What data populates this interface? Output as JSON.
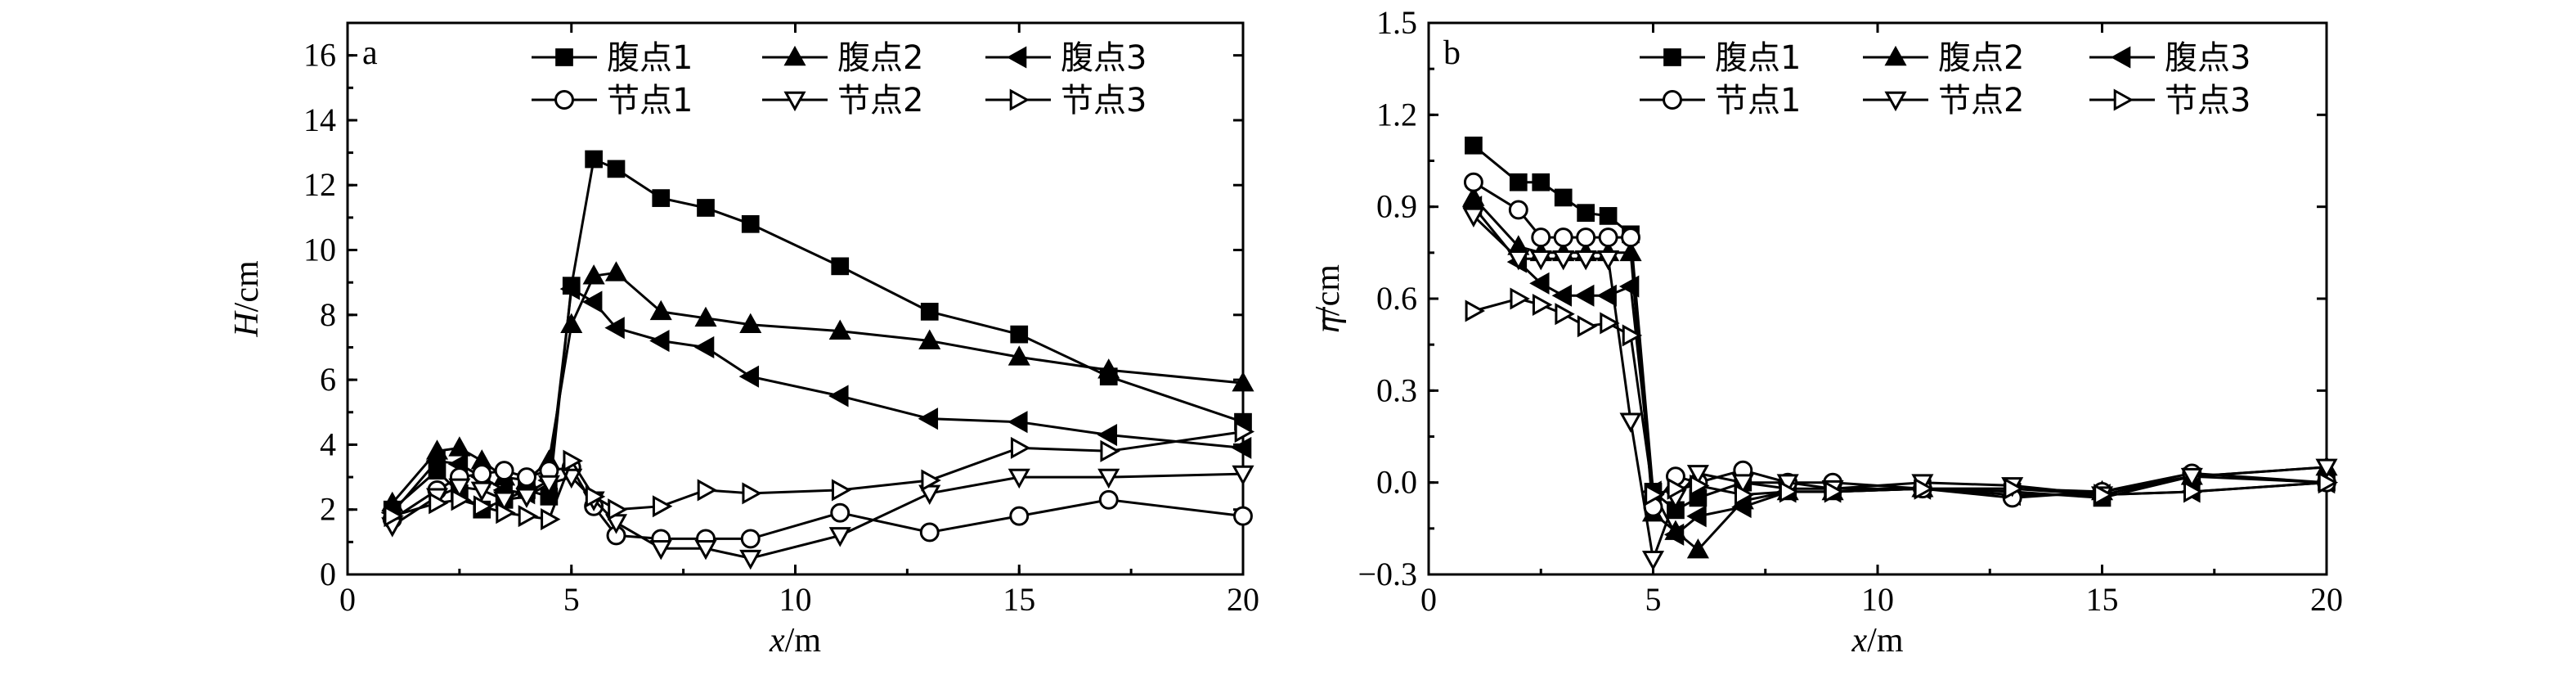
{
  "chart_data": [
    {
      "type": "line",
      "panel_label": "a",
      "xlabel": "x/m",
      "ylabel": "H/cm",
      "xlim": [
        0,
        20
      ],
      "ylim": [
        0,
        17
      ],
      "xticks": [
        0,
        5,
        10,
        15,
        20
      ],
      "yticks": [
        0,
        2,
        4,
        6,
        8,
        10,
        12,
        14,
        16
      ],
      "tick_decimals": 0,
      "grid": false,
      "legend_position": "top-right",
      "series": [
        {
          "name": "腹点1",
          "marker": "square-filled",
          "x": [
            1,
            2,
            2.5,
            3,
            3.5,
            4,
            4.5,
            5,
            5.5,
            6,
            7,
            8,
            9,
            11,
            13,
            15,
            17,
            20
          ],
          "y": [
            2.0,
            3.2,
            2.5,
            2.0,
            2.3,
            2.6,
            2.4,
            8.9,
            12.8,
            12.5,
            11.6,
            11.3,
            10.8,
            9.5,
            8.1,
            7.4,
            6.1,
            4.7
          ]
        },
        {
          "name": "腹点2",
          "marker": "triangle-up-filled",
          "x": [
            1,
            2,
            2.5,
            3,
            3.5,
            4,
            4.5,
            5,
            5.5,
            6,
            7,
            8,
            9,
            11,
            13,
            15,
            17,
            20
          ],
          "y": [
            2.2,
            3.8,
            3.9,
            3.5,
            3.0,
            2.9,
            3.5,
            7.7,
            9.2,
            9.3,
            8.1,
            7.9,
            7.7,
            7.5,
            7.2,
            6.7,
            6.3,
            5.9
          ]
        },
        {
          "name": "腹点3",
          "marker": "triangle-left-filled",
          "x": [
            1,
            2,
            2.5,
            3,
            3.5,
            4,
            4.5,
            5,
            5.5,
            6,
            7,
            8,
            9,
            11,
            13,
            15,
            17,
            20
          ],
          "y": [
            1.9,
            3.5,
            3.4,
            3.0,
            2.6,
            2.5,
            2.9,
            8.8,
            8.4,
            7.6,
            7.2,
            7.0,
            6.1,
            5.5,
            4.8,
            4.7,
            4.3,
            3.9
          ]
        },
        {
          "name": "节点1",
          "marker": "circle-open",
          "x": [
            1,
            2,
            2.5,
            3,
            3.5,
            4,
            4.5,
            5,
            5.5,
            6,
            7,
            8,
            9,
            11,
            13,
            15,
            17,
            20
          ],
          "y": [
            1.7,
            2.6,
            3.0,
            3.1,
            3.2,
            3.0,
            3.2,
            3.3,
            2.1,
            1.2,
            1.1,
            1.1,
            1.1,
            1.9,
            1.3,
            1.8,
            2.3,
            1.8
          ]
        },
        {
          "name": "节点2",
          "marker": "triangle-down-open",
          "x": [
            1,
            2,
            2.5,
            3,
            3.5,
            4,
            4.5,
            5,
            5.5,
            6,
            7,
            8,
            9,
            11,
            13,
            15,
            17,
            20
          ],
          "y": [
            1.5,
            2.4,
            2.7,
            2.6,
            2.3,
            2.4,
            2.8,
            3.0,
            2.3,
            1.6,
            0.8,
            0.8,
            0.5,
            1.2,
            2.5,
            3.0,
            3.0,
            3.1
          ]
        },
        {
          "name": "节点3",
          "marker": "triangle-right-open",
          "x": [
            1,
            2,
            2.5,
            3,
            3.5,
            4,
            4.5,
            5,
            5.5,
            6,
            7,
            8,
            9,
            11,
            13,
            15,
            17,
            20
          ],
          "y": [
            1.8,
            2.2,
            2.3,
            2.1,
            1.9,
            1.8,
            1.7,
            3.5,
            2.4,
            2.0,
            2.1,
            2.6,
            2.5,
            2.6,
            2.9,
            3.9,
            3.8,
            4.4
          ]
        }
      ]
    },
    {
      "type": "line",
      "panel_label": "b",
      "xlabel": "x/m",
      "ylabel": "η/cm",
      "xlim": [
        0,
        20
      ],
      "ylim": [
        -0.3,
        1.5
      ],
      "xticks": [
        0,
        5,
        10,
        15,
        20
      ],
      "yticks": [
        -0.3,
        0.0,
        0.3,
        0.6,
        0.9,
        1.2,
        1.5
      ],
      "tick_decimals": 1,
      "grid": false,
      "legend_position": "top-right",
      "series": [
        {
          "name": "腹点1",
          "marker": "square-filled",
          "x": [
            1,
            2,
            2.5,
            3,
            3.5,
            4,
            4.5,
            5,
            5.5,
            6,
            7,
            8,
            9,
            11,
            13,
            15,
            17,
            20
          ],
          "y": [
            1.1,
            0.98,
            0.98,
            0.93,
            0.88,
            0.87,
            0.81,
            -0.03,
            -0.09,
            -0.05,
            0.0,
            -0.02,
            -0.02,
            -0.02,
            -0.03,
            -0.05,
            0.02,
            0.0
          ]
        },
        {
          "name": "腹点2",
          "marker": "triangle-up-filled",
          "x": [
            1,
            2,
            2.5,
            3,
            3.5,
            4,
            4.5,
            5,
            5.5,
            6,
            7,
            8,
            9,
            11,
            13,
            15,
            17,
            20
          ],
          "y": [
            0.93,
            0.77,
            0.75,
            0.75,
            0.75,
            0.75,
            0.75,
            -0.1,
            -0.16,
            -0.22,
            -0.06,
            -0.03,
            -0.03,
            -0.02,
            -0.02,
            -0.03,
            0.02,
            0.05
          ]
        },
        {
          "name": "腹点3",
          "marker": "triangle-left-filled",
          "x": [
            1,
            2,
            2.5,
            3,
            3.5,
            4,
            4.5,
            5,
            5.5,
            6,
            7,
            8,
            9,
            11,
            13,
            15,
            17,
            20
          ],
          "y": [
            0.9,
            0.72,
            0.65,
            0.61,
            0.61,
            0.61,
            0.64,
            -0.03,
            -0.17,
            -0.11,
            -0.08,
            -0.03,
            -0.03,
            -0.02,
            -0.04,
            -0.04,
            -0.03,
            0.0
          ]
        },
        {
          "name": "节点1",
          "marker": "circle-open",
          "x": [
            1,
            2,
            2.5,
            3,
            3.5,
            4,
            4.5,
            5,
            5.5,
            6,
            7,
            8,
            9,
            11,
            13,
            15,
            17,
            20
          ],
          "y": [
            0.98,
            0.89,
            0.8,
            0.8,
            0.8,
            0.8,
            0.8,
            -0.08,
            0.02,
            0.0,
            0.04,
            0.0,
            0.0,
            -0.02,
            -0.05,
            -0.03,
            0.03,
            0.0
          ]
        },
        {
          "name": "节点2",
          "marker": "triangle-down-open",
          "x": [
            1,
            2,
            2.5,
            3,
            3.5,
            4,
            4.5,
            5,
            5.5,
            6,
            7,
            8,
            9,
            11,
            13,
            15,
            17,
            20
          ],
          "y": [
            0.87,
            0.73,
            0.73,
            0.73,
            0.73,
            0.73,
            0.2,
            -0.25,
            -0.05,
            0.03,
            0.0,
            0.0,
            -0.02,
            0.0,
            -0.01,
            -0.04,
            0.02,
            0.05
          ]
        },
        {
          "name": "节点3",
          "marker": "triangle-right-open",
          "x": [
            1,
            2,
            2.5,
            3,
            3.5,
            4,
            4.5,
            5,
            5.5,
            6,
            7,
            8,
            9,
            11,
            13,
            15,
            17,
            20
          ],
          "y": [
            0.56,
            0.6,
            0.58,
            0.55,
            0.51,
            0.52,
            0.48,
            -0.04,
            -0.02,
            -0.01,
            -0.04,
            -0.03,
            -0.03,
            -0.02,
            -0.02,
            -0.04,
            -0.03,
            0.0
          ]
        }
      ]
    }
  ]
}
